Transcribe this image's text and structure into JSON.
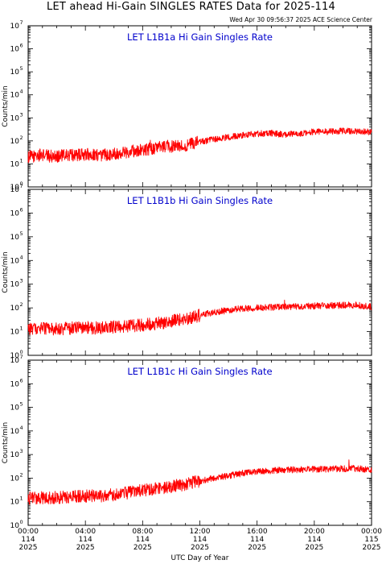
{
  "page": {
    "title": "LET ahead Hi-Gain SINGLES RATES Data for 2025-114",
    "timestamp": "Wed Apr 30 09:56:37 2025 ACE Science Center"
  },
  "colors": {
    "trace": "#ff0000",
    "panel_title": "#0000cc",
    "axes": "#000000"
  },
  "chart_data": [
    {
      "type": "line",
      "title": "LET L1B1a Hi Gain Singles Rate",
      "ylabel": "Counts/min",
      "y_scale": "log",
      "ylim": [
        1,
        10000000
      ],
      "y_ticks": [
        {
          "base": "10",
          "exp": "0"
        },
        {
          "base": "10",
          "exp": "1"
        },
        {
          "base": "10",
          "exp": "2"
        },
        {
          "base": "10",
          "exp": "3"
        },
        {
          "base": "10",
          "exp": "4"
        },
        {
          "base": "10",
          "exp": "5"
        },
        {
          "base": "10",
          "exp": "6"
        },
        {
          "base": "10",
          "exp": "7"
        }
      ],
      "xlim": [
        "2025-114 00:00",
        "2025-115 00:00"
      ],
      "series": [
        {
          "x_hours": [
            0,
            1,
            1.5,
            2,
            3,
            4,
            5,
            6,
            7,
            8,
            9,
            9.5,
            10,
            11,
            12,
            13,
            14,
            15,
            16,
            17,
            18,
            19,
            20,
            21,
            22,
            23,
            24
          ],
          "values": [
            20,
            25,
            22,
            22,
            24,
            26,
            24,
            28,
            34,
            42,
            48,
            60,
            55,
            65,
            90,
            115,
            145,
            175,
            205,
            215,
            185,
            210,
            250,
            250,
            270,
            255,
            240
          ]
        }
      ]
    },
    {
      "type": "line",
      "title": "LET L1B1b Hi Gain Singles Rate",
      "ylabel": "Counts/min",
      "y_scale": "log",
      "ylim": [
        1,
        10000000
      ],
      "y_ticks": [
        {
          "base": "10",
          "exp": "0"
        },
        {
          "base": "10",
          "exp": "1"
        },
        {
          "base": "10",
          "exp": "2"
        },
        {
          "base": "10",
          "exp": "3"
        },
        {
          "base": "10",
          "exp": "4"
        },
        {
          "base": "10",
          "exp": "5"
        },
        {
          "base": "10",
          "exp": "6"
        },
        {
          "base": "10",
          "exp": "7"
        }
      ],
      "xlim": [
        "2025-114 00:00",
        "2025-115 00:00"
      ],
      "series": [
        {
          "x_hours": [
            0,
            1,
            2,
            3,
            4,
            5,
            6,
            7,
            8,
            9,
            10,
            11,
            12,
            13,
            14,
            15,
            16,
            17,
            18,
            19,
            20,
            21,
            22,
            23,
            24
          ],
          "values": [
            12,
            14,
            13,
            14,
            15,
            14,
            16,
            17,
            19,
            22,
            28,
            35,
            48,
            65,
            80,
            95,
            100,
            105,
            110,
            115,
            120,
            125,
            130,
            130,
            110
          ]
        }
      ]
    },
    {
      "type": "line",
      "title": "LET L1B1c Hi Gain Singles Rate",
      "ylabel": "Counts/min",
      "y_scale": "log",
      "ylim": [
        1,
        10000000
      ],
      "y_ticks": [
        {
          "base": "10",
          "exp": "0"
        },
        {
          "base": "10",
          "exp": "1"
        },
        {
          "base": "10",
          "exp": "2"
        },
        {
          "base": "10",
          "exp": "3"
        },
        {
          "base": "10",
          "exp": "4"
        },
        {
          "base": "10",
          "exp": "5"
        },
        {
          "base": "10",
          "exp": "6"
        },
        {
          "base": "10",
          "exp": "7"
        }
      ],
      "xlim": [
        "2025-114 00:00",
        "2025-115 00:00"
      ],
      "series": [
        {
          "x_hours": [
            0,
            1,
            2,
            3,
            4,
            5,
            6,
            7,
            8,
            9,
            10,
            11,
            12,
            13,
            14,
            15,
            16,
            17,
            18,
            19,
            20,
            21,
            22,
            23,
            24
          ],
          "values": [
            14,
            15,
            15,
            16,
            17,
            18,
            20,
            24,
            30,
            36,
            44,
            55,
            75,
            100,
            125,
            160,
            190,
            210,
            220,
            230,
            235,
            245,
            250,
            255,
            215
          ]
        }
      ]
    }
  ],
  "x_axis": {
    "label": "UTC Day of Year",
    "ticks": [
      {
        "time": "00:00",
        "day": "114",
        "year": "2025"
      },
      {
        "time": "04:00",
        "day": "114",
        "year": "2025"
      },
      {
        "time": "08:00",
        "day": "114",
        "year": "2025"
      },
      {
        "time": "12:00",
        "day": "114",
        "year": "2025"
      },
      {
        "time": "16:00",
        "day": "114",
        "year": "2025"
      },
      {
        "time": "20:00",
        "day": "114",
        "year": "2025"
      },
      {
        "time": "00:00",
        "day": "115",
        "year": "2025"
      }
    ]
  }
}
